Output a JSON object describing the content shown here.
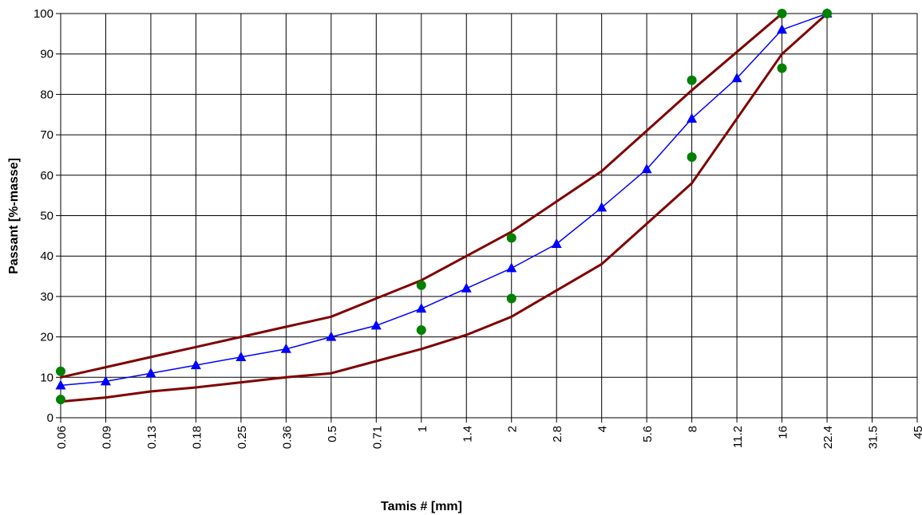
{
  "chart_data": {
    "type": "line",
    "title": "",
    "xlabel": "Tamis # [mm]",
    "ylabel": "Passant [%-masse]",
    "categories": [
      "0.06",
      "0.09",
      "0.13",
      "0.18",
      "0.25",
      "0.36",
      "0.5",
      "0.71",
      "1",
      "1.4",
      "2",
      "2.8",
      "4",
      "5.6",
      "8",
      "11.2",
      "16",
      "22.4",
      "31.5",
      "45"
    ],
    "ylim": [
      0,
      100
    ],
    "yticks": [
      0,
      10,
      20,
      30,
      40,
      50,
      60,
      70,
      80,
      90,
      100
    ],
    "grid": true,
    "legend": "none",
    "colors": {
      "envelope": "#800000",
      "curve": "#0000ff",
      "points": "#008000"
    },
    "series": [
      {
        "style": "line",
        "color": "#800000",
        "values": [
          10,
          12.5,
          15,
          17.5,
          20,
          22.5,
          25,
          29.5,
          34,
          40,
          46,
          53.5,
          61,
          71,
          81,
          90.5,
          100,
          null,
          null,
          null
        ]
      },
      {
        "style": "line",
        "color": "#800000",
        "values": [
          4,
          5,
          6.5,
          7.5,
          8.75,
          10,
          11,
          14,
          17,
          20.5,
          25,
          31.5,
          38,
          48,
          58,
          74,
          90,
          100,
          null,
          null
        ]
      },
      {
        "style": "line-triangles",
        "color": "#0000ff",
        "values": [
          8,
          9,
          11,
          13,
          15,
          17,
          20,
          22.8,
          27,
          32,
          37,
          43,
          52,
          61.5,
          74,
          84,
          96,
          100,
          null,
          null
        ]
      },
      {
        "style": "markers",
        "color": "#008000",
        "points": [
          {
            "x": "0.06",
            "y": 11.5
          },
          {
            "x": "0.06",
            "y": 4.5
          },
          {
            "x": "1",
            "y": 32.8
          },
          {
            "x": "1",
            "y": 21.7
          },
          {
            "x": "2",
            "y": 44.5
          },
          {
            "x": "2",
            "y": 29.5
          },
          {
            "x": "8",
            "y": 83.5
          },
          {
            "x": "8",
            "y": 64.5
          },
          {
            "x": "16",
            "y": 100
          },
          {
            "x": "16",
            "y": 86.5
          },
          {
            "x": "22.4",
            "y": 100
          }
        ]
      }
    ]
  }
}
